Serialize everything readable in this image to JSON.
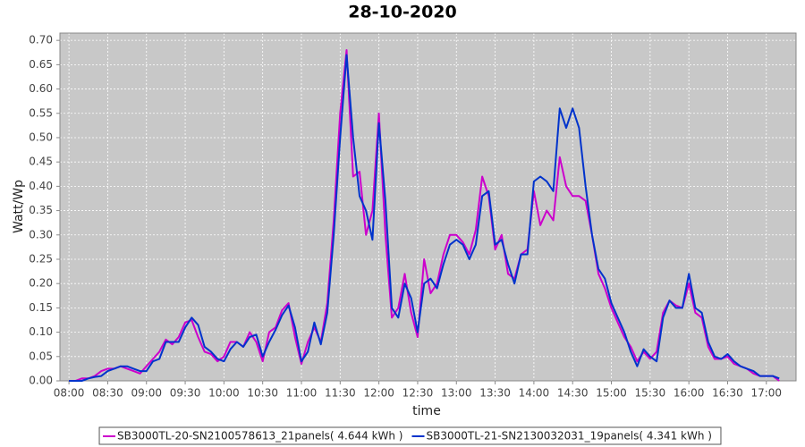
{
  "chart_data": {
    "type": "line",
    "title": "28-10-2020",
    "x_label": "time",
    "y_label": "Watt/Wp",
    "x": [
      "08:00",
      "08:05",
      "08:10",
      "08:15",
      "08:20",
      "08:25",
      "08:30",
      "08:35",
      "08:40",
      "08:45",
      "08:50",
      "08:55",
      "09:00",
      "09:05",
      "09:10",
      "09:15",
      "09:20",
      "09:25",
      "09:30",
      "09:35",
      "09:40",
      "09:45",
      "09:50",
      "09:55",
      "10:00",
      "10:05",
      "10:10",
      "10:15",
      "10:20",
      "10:25",
      "10:30",
      "10:35",
      "10:40",
      "10:45",
      "10:50",
      "10:55",
      "11:00",
      "11:05",
      "11:10",
      "11:15",
      "11:20",
      "11:25",
      "11:30",
      "11:35",
      "11:40",
      "11:45",
      "11:50",
      "11:55",
      "12:00",
      "12:05",
      "12:10",
      "12:15",
      "12:20",
      "12:25",
      "12:30",
      "12:35",
      "12:40",
      "12:45",
      "12:50",
      "12:55",
      "13:00",
      "13:05",
      "13:10",
      "13:15",
      "13:20",
      "13:25",
      "13:30",
      "13:35",
      "13:40",
      "13:45",
      "13:50",
      "13:55",
      "14:00",
      "14:05",
      "14:10",
      "14:15",
      "14:20",
      "14:25",
      "14:30",
      "14:35",
      "14:40",
      "14:45",
      "14:50",
      "14:55",
      "15:00",
      "15:05",
      "15:10",
      "15:15",
      "15:20",
      "15:25",
      "15:30",
      "15:35",
      "15:40",
      "15:45",
      "15:50",
      "15:55",
      "16:00",
      "16:05",
      "16:10",
      "16:15",
      "16:20",
      "16:25",
      "16:30",
      "16:35",
      "16:40",
      "16:45",
      "16:50",
      "16:55",
      "17:00",
      "17:05",
      "17:10"
    ],
    "series": [
      {
        "name": "SB3000TL-20-SN2100578613_21panels( 4.644 kWh )",
        "color": "#cc00cc",
        "values": [
          0,
          0,
          0.005,
          0.005,
          0.01,
          0.02,
          0.025,
          0.025,
          0.03,
          0.025,
          0.02,
          0.015,
          0.03,
          0.045,
          0.06,
          0.085,
          0.075,
          0.09,
          0.12,
          0.125,
          0.09,
          0.06,
          0.055,
          0.04,
          0.05,
          0.08,
          0.08,
          0.07,
          0.1,
          0.08,
          0.04,
          0.1,
          0.11,
          0.145,
          0.16,
          0.09,
          0.035,
          0.08,
          0.11,
          0.08,
          0.16,
          0.33,
          0.55,
          0.68,
          0.42,
          0.43,
          0.3,
          0.35,
          0.55,
          0.3,
          0.13,
          0.15,
          0.22,
          0.14,
          0.09,
          0.25,
          0.18,
          0.2,
          0.26,
          0.3,
          0.3,
          0.285,
          0.26,
          0.31,
          0.42,
          0.38,
          0.27,
          0.3,
          0.22,
          0.21,
          0.26,
          0.27,
          0.39,
          0.32,
          0.35,
          0.33,
          0.46,
          0.4,
          0.38,
          0.38,
          0.37,
          0.3,
          0.22,
          0.19,
          0.15,
          0.12,
          0.09,
          0.07,
          0.04,
          0.06,
          0.045,
          0.06,
          0.14,
          0.165,
          0.155,
          0.15,
          0.2,
          0.14,
          0.13,
          0.07,
          0.045,
          0.045,
          0.05,
          0.035,
          0.03,
          0.025,
          0.015,
          0.01,
          0.01,
          0.01,
          0
        ]
      },
      {
        "name": "SB3000TL-21-SN2130032031_19panels( 4.341 kWh )",
        "color": "#0033cc",
        "values": [
          0,
          0,
          0,
          0.005,
          0.008,
          0.01,
          0.02,
          0.025,
          0.03,
          0.03,
          0.025,
          0.02,
          0.02,
          0.04,
          0.045,
          0.08,
          0.08,
          0.08,
          0.11,
          0.13,
          0.115,
          0.07,
          0.06,
          0.045,
          0.04,
          0.065,
          0.08,
          0.07,
          0.09,
          0.095,
          0.05,
          0.08,
          0.105,
          0.135,
          0.155,
          0.11,
          0.04,
          0.06,
          0.12,
          0.075,
          0.14,
          0.3,
          0.5,
          0.67,
          0.5,
          0.38,
          0.35,
          0.29,
          0.53,
          0.37,
          0.15,
          0.13,
          0.2,
          0.17,
          0.1,
          0.2,
          0.21,
          0.19,
          0.24,
          0.28,
          0.29,
          0.28,
          0.25,
          0.28,
          0.38,
          0.39,
          0.28,
          0.29,
          0.24,
          0.2,
          0.26,
          0.26,
          0.41,
          0.42,
          0.41,
          0.39,
          0.56,
          0.52,
          0.56,
          0.52,
          0.4,
          0.3,
          0.23,
          0.21,
          0.16,
          0.13,
          0.1,
          0.06,
          0.03,
          0.065,
          0.05,
          0.04,
          0.13,
          0.165,
          0.15,
          0.15,
          0.22,
          0.15,
          0.14,
          0.08,
          0.05,
          0.045,
          0.055,
          0.04,
          0.03,
          0.025,
          0.02,
          0.01,
          0.01,
          0.01,
          0.005
        ]
      }
    ],
    "xlim": [
      "07:53",
      "17:23"
    ],
    "xticks": [
      "08:00",
      "08:30",
      "09:00",
      "09:30",
      "10:00",
      "10:30",
      "11:00",
      "11:30",
      "12:00",
      "12:30",
      "13:00",
      "13:30",
      "14:00",
      "14:30",
      "15:00",
      "15:30",
      "16:00",
      "16:30",
      "17:00"
    ],
    "ylim": [
      0,
      0.715
    ],
    "yticks": [
      {
        "value": 0,
        "label": "0.00"
      },
      {
        "value": 0.05,
        "label": "0.05"
      },
      {
        "value": 0.1,
        "label": "0.10"
      },
      {
        "value": 0.15,
        "label": "0.15"
      },
      {
        "value": 0.2,
        "label": "0.20"
      },
      {
        "value": 0.25,
        "label": "0.25"
      },
      {
        "value": 0.3,
        "label": "0.30"
      },
      {
        "value": 0.35,
        "label": "0.35"
      },
      {
        "value": 0.4,
        "label": "0.40"
      },
      {
        "value": 0.45,
        "label": "0.45"
      },
      {
        "value": 0.5,
        "label": "0.50"
      },
      {
        "value": 0.55,
        "label": "0.55"
      },
      {
        "value": 0.6,
        "label": "0.60"
      },
      {
        "value": 0.65,
        "label": "0.65"
      },
      {
        "value": 0.7,
        "label": "0.70"
      }
    ],
    "grid": true,
    "legend": "bottom"
  }
}
